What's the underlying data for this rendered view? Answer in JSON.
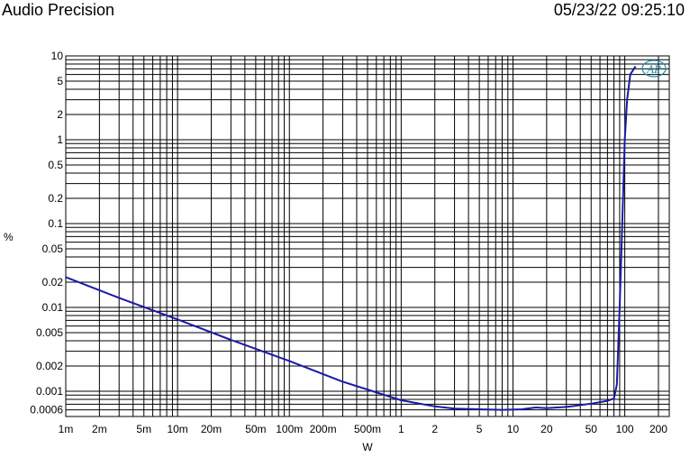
{
  "header": {
    "brand": "Audio Precision",
    "timestamp": "05/23/22 09:25:10"
  },
  "chart_data": {
    "type": "line",
    "xlabel": "W",
    "ylabel": "%",
    "x_scale": "log",
    "y_scale": "log",
    "xlim": [
      0.001,
      250
    ],
    "ylim": [
      0.0005,
      10
    ],
    "grid": true,
    "x_ticks": [
      {
        "v": 0.001,
        "label": "1m"
      },
      {
        "v": 0.002,
        "label": "2m"
      },
      {
        "v": 0.005,
        "label": "5m"
      },
      {
        "v": 0.01,
        "label": "10m"
      },
      {
        "v": 0.02,
        "label": "20m"
      },
      {
        "v": 0.05,
        "label": "50m"
      },
      {
        "v": 0.1,
        "label": "100m"
      },
      {
        "v": 0.2,
        "label": "200m"
      },
      {
        "v": 0.5,
        "label": "500m"
      },
      {
        "v": 1,
        "label": "1"
      },
      {
        "v": 2,
        "label": "2"
      },
      {
        "v": 5,
        "label": "5"
      },
      {
        "v": 10,
        "label": "10"
      },
      {
        "v": 20,
        "label": "20"
      },
      {
        "v": 50,
        "label": "50"
      },
      {
        "v": 100,
        "label": "100"
      },
      {
        "v": 200,
        "label": "200"
      }
    ],
    "y_ticks": [
      {
        "v": 10,
        "label": "10"
      },
      {
        "v": 5,
        "label": "5"
      },
      {
        "v": 2,
        "label": "2"
      },
      {
        "v": 1,
        "label": "1"
      },
      {
        "v": 0.5,
        "label": "0.5"
      },
      {
        "v": 0.2,
        "label": "0.2"
      },
      {
        "v": 0.1,
        "label": "0.1"
      },
      {
        "v": 0.05,
        "label": "0.05"
      },
      {
        "v": 0.02,
        "label": "0.02"
      },
      {
        "v": 0.01,
        "label": "0.01"
      },
      {
        "v": 0.005,
        "label": "0.005"
      },
      {
        "v": 0.002,
        "label": "0.002"
      },
      {
        "v": 0.001,
        "label": "0.001"
      },
      {
        "v": 0.0006,
        "label": "0.0006"
      }
    ],
    "series": [
      {
        "color": "#1a1aa8",
        "points": [
          [
            0.001,
            0.023
          ],
          [
            0.003,
            0.013
          ],
          [
            0.01,
            0.0072
          ],
          [
            0.03,
            0.0041
          ],
          [
            0.1,
            0.0023
          ],
          [
            0.3,
            0.0013
          ],
          [
            1,
            0.00078
          ],
          [
            2,
            0.00066
          ],
          [
            3,
            0.00062
          ],
          [
            5,
            0.00061
          ],
          [
            8,
            0.0006
          ],
          [
            12,
            0.00061
          ],
          [
            16,
            0.00064
          ],
          [
            20,
            0.00063
          ],
          [
            30,
            0.00065
          ],
          [
            50,
            0.00071
          ],
          [
            70,
            0.00077
          ],
          [
            80,
            0.00082
          ],
          [
            85,
            0.0012
          ],
          [
            90,
            0.01
          ],
          [
            95,
            0.1
          ],
          [
            100,
            1
          ],
          [
            105,
            3
          ],
          [
            112,
            6
          ],
          [
            125,
            7.5
          ]
        ]
      }
    ]
  },
  "logo": {
    "text": "AP",
    "color": "#1b8fb0"
  }
}
